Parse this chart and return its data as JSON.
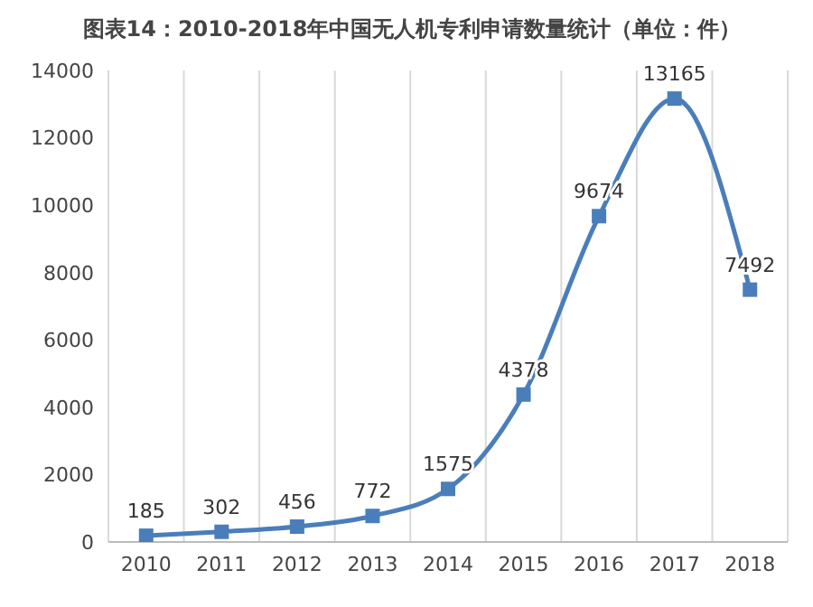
{
  "chart_data": {
    "type": "line",
    "title": "图表14：2010-2018年中国无人机专利申请数量统计（单位：件）",
    "categories": [
      "2010",
      "2011",
      "2012",
      "2013",
      "2014",
      "2015",
      "2016",
      "2017",
      "2018"
    ],
    "series": [
      {
        "color": "#4a7ebb",
        "values": [
          185,
          302,
          456,
          772,
          1575,
          4378,
          9674,
          13165,
          7492
        ]
      }
    ],
    "ylim": [
      0,
      14000
    ],
    "yticks": [
      0,
      2000,
      4000,
      6000,
      8000,
      10000,
      12000,
      14000
    ],
    "grid": "x",
    "marker": "square",
    "line_style": "solid",
    "data_labels": true,
    "legend": false
  }
}
